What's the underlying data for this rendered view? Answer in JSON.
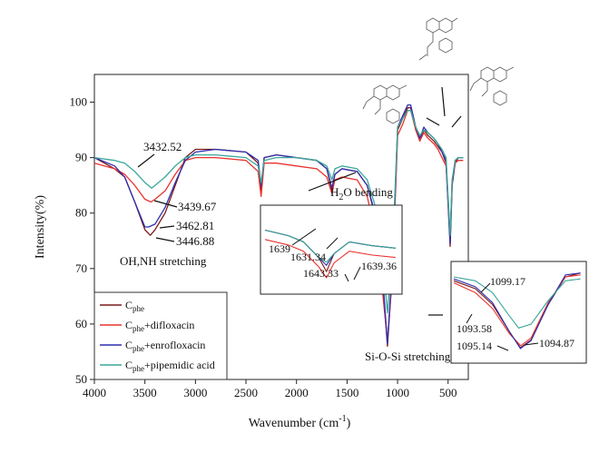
{
  "chart_data": {
    "type": "line",
    "xlabel": "Wavenumber (cm",
    "xlabel_sup": "-1",
    "xlabel_end": ")",
    "ylabel": "Intensity(%)",
    "xlim": [
      4000,
      300
    ],
    "ylim": [
      50,
      105
    ],
    "x_ticks": [
      4000,
      3500,
      3000,
      2500,
      2000,
      1500,
      1000,
      500
    ],
    "y_ticks": [
      50,
      60,
      70,
      80,
      90,
      100
    ],
    "grid": false,
    "legend_position": "bottom-left",
    "series": [
      {
        "name": "Cphe",
        "legend_base": "C",
        "legend_sub": "phe",
        "legend_suffix": "",
        "color": "#7a1a1a",
        "x": [
          4000,
          3800,
          3700,
          3600,
          3500,
          3447,
          3400,
          3300,
          3200,
          3100,
          3000,
          2800,
          2500,
          2380,
          2350,
          2320,
          2200,
          2000,
          1800,
          1700,
          1650,
          1620,
          1550,
          1400,
          1300,
          1200,
          1150,
          1100,
          1050,
          1000,
          950,
          900,
          870,
          820,
          780,
          740,
          700,
          640,
          600,
          560,
          520,
          480,
          460,
          430,
          400,
          350
        ],
        "y": [
          90,
          88,
          86.5,
          82,
          77,
          76,
          77,
          80,
          85,
          90,
          91.5,
          91.5,
          91,
          89,
          84,
          90,
          90.5,
          90,
          89.5,
          88,
          84,
          87,
          88,
          87.5,
          85,
          78,
          68,
          56,
          70,
          95,
          97,
          99,
          99,
          95,
          93,
          95,
          94,
          93,
          92,
          91,
          89,
          74,
          85,
          89,
          90,
          90
        ]
      },
      {
        "name": "Cphe+difloxacin",
        "legend_base": "C",
        "legend_sub": "phe",
        "legend_suffix": "+difloxacin",
        "color": "#e8332e",
        "x": [
          4000,
          3800,
          3700,
          3600,
          3500,
          3440,
          3400,
          3300,
          3200,
          3100,
          3000,
          2800,
          2500,
          2380,
          2350,
          2320,
          2200,
          2000,
          1800,
          1700,
          1650,
          1620,
          1550,
          1400,
          1300,
          1200,
          1150,
          1100,
          1050,
          1000,
          950,
          900,
          870,
          820,
          780,
          740,
          700,
          640,
          600,
          560,
          520,
          480,
          460,
          430,
          400,
          350
        ],
        "y": [
          89,
          88,
          87,
          85,
          82.5,
          82,
          82.5,
          84,
          87,
          89.5,
          90,
          90,
          89.5,
          87.5,
          83,
          89,
          89,
          88.5,
          88,
          86.5,
          83.5,
          86,
          86.5,
          86,
          83,
          75,
          66,
          57,
          69,
          94,
          96,
          98.5,
          98.5,
          95,
          93,
          94.5,
          93.5,
          92.5,
          91.5,
          90,
          88.5,
          76,
          86,
          89,
          89.5,
          89.5
        ]
      },
      {
        "name": "Cphe+enrofloxacin",
        "legend_base": "C",
        "legend_sub": "phe",
        "legend_suffix": "+enrofloxacin",
        "color": "#2f2fb0",
        "x": [
          4000,
          3800,
          3700,
          3600,
          3500,
          3463,
          3400,
          3300,
          3200,
          3100,
          3000,
          2800,
          2500,
          2380,
          2350,
          2320,
          2200,
          2000,
          1800,
          1700,
          1650,
          1620,
          1550,
          1400,
          1300,
          1200,
          1150,
          1100,
          1050,
          1000,
          950,
          900,
          870,
          820,
          780,
          740,
          700,
          640,
          600,
          560,
          520,
          480,
          460,
          430,
          400,
          350
        ],
        "y": [
          90,
          88.5,
          86.5,
          82,
          77.5,
          77.5,
          78,
          81,
          85.5,
          89.5,
          91,
          91.5,
          91,
          89.5,
          85,
          90,
          90.5,
          90,
          89.5,
          88,
          84.5,
          87,
          88,
          87.5,
          85,
          78.5,
          69,
          56.5,
          71,
          95.5,
          97.5,
          99.5,
          99.5,
          95.5,
          93.5,
          95.5,
          94.5,
          93.5,
          92.5,
          91,
          89.5,
          74.5,
          85.5,
          89.5,
          90,
          90
        ]
      },
      {
        "name": "Cphe+pipemidic acid",
        "legend_base": "C",
        "legend_sub": "phe",
        "legend_suffix": "+pipemidic acid",
        "color": "#3aa89a",
        "x": [
          4000,
          3800,
          3700,
          3600,
          3500,
          3433,
          3400,
          3300,
          3200,
          3100,
          3000,
          2800,
          2500,
          2380,
          2350,
          2320,
          2200,
          2000,
          1800,
          1700,
          1650,
          1620,
          1550,
          1400,
          1300,
          1200,
          1150,
          1100,
          1050,
          1000,
          950,
          900,
          870,
          820,
          780,
          740,
          700,
          640,
          600,
          560,
          520,
          480,
          460,
          430,
          400,
          350
        ],
        "y": [
          90,
          89.5,
          89,
          87.5,
          85.5,
          84.5,
          85,
          86.5,
          88.5,
          90,
          90.5,
          90.5,
          90,
          88.5,
          85.5,
          89.5,
          90,
          90,
          89.5,
          88.5,
          86,
          88,
          88.5,
          88,
          86,
          80,
          72,
          62,
          73,
          95.5,
          97,
          98.5,
          98.5,
          95.5,
          94,
          95,
          94.5,
          93.5,
          92.5,
          91.5,
          90,
          76,
          86,
          89.5,
          90,
          90
        ]
      }
    ],
    "annotations": {
      "peak_3432": "3432.52",
      "peak_3439": "3439.67",
      "peak_3462": "3462.81",
      "peak_3446": "3446.88",
      "oh_nh": "OH,NH stretching",
      "h2o_bending_pre": "H",
      "h2o_bending_sub": "2",
      "h2o_bending_post": "O bending",
      "si_o_si": "Si-O-Si stretching"
    },
    "inset_1": {
      "labels": [
        "1639",
        "1631.34",
        "1643.33",
        "1639.36"
      ]
    },
    "inset_2": {
      "labels": [
        "1099.17",
        "1093.58",
        "1095.14",
        "1094.87"
      ]
    }
  }
}
